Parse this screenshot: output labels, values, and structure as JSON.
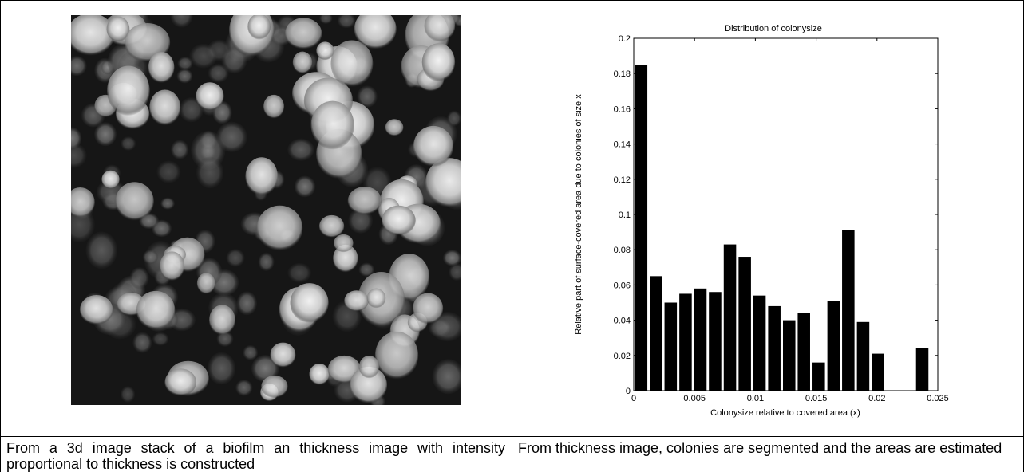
{
  "left_panel": {
    "image_label": "biofilm thickness image",
    "caption": "From a 3d image stack of a biofilm an thickness image with intensity proportional to thickness is constructed"
  },
  "right_panel": {
    "caption": "From thickness image, colonies are segmented and the areas are estimated"
  },
  "chart_data": {
    "type": "bar",
    "title": "Distribution of colonysize",
    "xlabel": "Colonysize relative to covered area (x)",
    "ylabel": "Relative part of surface-covered area due to colonies of size x",
    "xlim": [
      0,
      0.025
    ],
    "ylim": [
      0,
      0.2
    ],
    "xticks": [
      0,
      0.005,
      0.01,
      0.015,
      0.02,
      0.025
    ],
    "xtick_labels": [
      "0",
      "0.005",
      "0.01",
      "0.015",
      "0.02",
      "0.025"
    ],
    "yticks": [
      0,
      0.02,
      0.04,
      0.06,
      0.08,
      0.1,
      0.12,
      0.14,
      0.16,
      0.18,
      0.2
    ],
    "ytick_labels": [
      "0",
      "0.02",
      "0.04",
      "0.06",
      "0.08",
      "0.1",
      "0.12",
      "0.14",
      "0.16",
      "0.18",
      "0.2"
    ],
    "bar_width": 0.00102,
    "x": [
      0.00061,
      0.00183,
      0.00304,
      0.00426,
      0.00548,
      0.00669,
      0.00791,
      0.00913,
      0.01034,
      0.01156,
      0.01278,
      0.01399,
      0.01521,
      0.01643,
      0.01764,
      0.01886,
      0.02007,
      0.02129,
      0.02251,
      0.02372
    ],
    "values": [
      0.185,
      0.065,
      0.05,
      0.055,
      0.058,
      0.056,
      0.083,
      0.076,
      0.054,
      0.048,
      0.04,
      0.044,
      0.016,
      0.051,
      0.091,
      0.039,
      0.021,
      0,
      0,
      0.024
    ],
    "bar_color": "#000000",
    "grid": false,
    "legend": "none"
  }
}
